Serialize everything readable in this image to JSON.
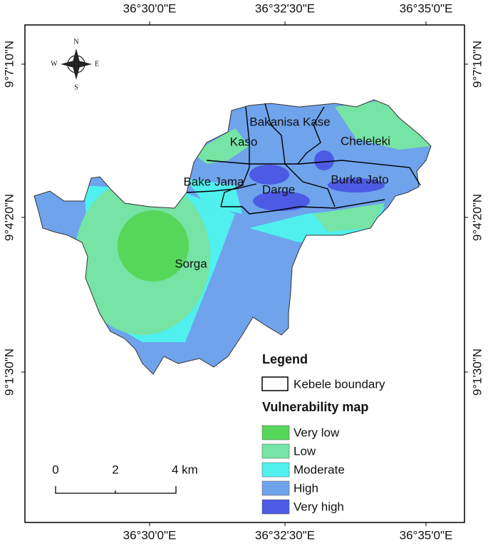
{
  "map": {
    "longitude_labels": [
      "36°30'0\"E",
      "36°32'30\"E",
      "36°35'0\"E"
    ],
    "latitude_labels": [
      "9°7'10\"N",
      "9°4'20\"N",
      "9°1'30\"N"
    ],
    "compass": {
      "north": "N",
      "south": "S",
      "east": "E",
      "west": "W"
    },
    "kebeles": [
      "Bakanisa Kase",
      "Kaso",
      "Cheleleki",
      "Bake Jama",
      "Darge",
      "Burka Jato",
      "Sorga"
    ],
    "legend": {
      "title": "Legend",
      "boundary_label": "Kebele boundary",
      "subtitle": "Vulnerability map",
      "classes": [
        {
          "label": "Very low",
          "color": "#56d75a"
        },
        {
          "label": "Low",
          "color": "#76e4a4"
        },
        {
          "label": "Moderate",
          "color": "#4ff0ee"
        },
        {
          "label": "High",
          "color": "#6fa3ec"
        },
        {
          "label": "Very high",
          "color": "#4c5ae4"
        }
      ]
    },
    "scale_bar": {
      "labels": [
        "0",
        "2",
        "4 km"
      ]
    }
  }
}
